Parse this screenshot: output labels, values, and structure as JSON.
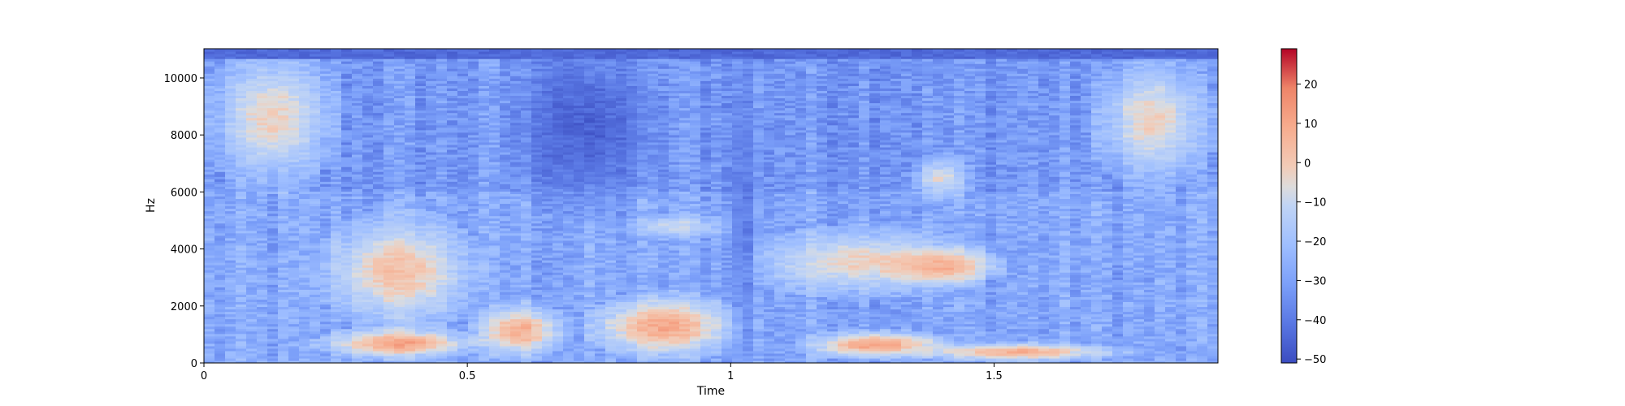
{
  "chart_data": {
    "type": "heatmap",
    "title": "",
    "xlabel": "Time",
    "ylabel": "Hz",
    "xlim": [
      0,
      1.925
    ],
    "ylim": [
      0,
      11025
    ],
    "x_ticks": [
      {
        "value": 0,
        "label": "0"
      },
      {
        "value": 0.5,
        "label": "0.5"
      },
      {
        "value": 1,
        "label": "1"
      },
      {
        "value": 1.5,
        "label": "1.5"
      }
    ],
    "y_ticks": [
      {
        "value": 0,
        "label": "0"
      },
      {
        "value": 2000,
        "label": "2000"
      },
      {
        "value": 4000,
        "label": "4000"
      },
      {
        "value": 6000,
        "label": "6000"
      },
      {
        "value": 8000,
        "label": "8000"
      },
      {
        "value": 10000,
        "label": "10000"
      }
    ],
    "colorbar": {
      "colormap": "coolwarm",
      "range": [
        -51,
        29
      ],
      "ticks": [
        {
          "value": 20,
          "label": "20"
        },
        {
          "value": 10,
          "label": "10"
        },
        {
          "value": 0,
          "label": "0"
        },
        {
          "value": -10,
          "label": "−10"
        },
        {
          "value": -20,
          "label": "−20"
        },
        {
          "value": -30,
          "label": "−30"
        },
        {
          "value": -40,
          "label": "−40"
        },
        {
          "value": -50,
          "label": "−50"
        }
      ]
    },
    "energy_regions": [
      {
        "t": [
          0.02,
          0.24
        ],
        "f": [
          6500,
          10800
        ],
        "db": -2
      },
      {
        "t": [
          0.24,
          0.5
        ],
        "f": [
          1500,
          5000
        ],
        "db": 3
      },
      {
        "t": [
          0.24,
          0.5
        ],
        "f": [
          200,
          1200
        ],
        "db": 12
      },
      {
        "t": [
          0.52,
          0.68
        ],
        "f": [
          300,
          2000
        ],
        "db": 8
      },
      {
        "t": [
          0.75,
          1.0
        ],
        "f": [
          300,
          2300
        ],
        "db": 10
      },
      {
        "t": [
          0.82,
          0.98
        ],
        "f": [
          4400,
          5200
        ],
        "db": -8
      },
      {
        "t": [
          1.05,
          1.45
        ],
        "f": [
          2500,
          4600
        ],
        "db": -2
      },
      {
        "t": [
          1.3,
          1.5
        ],
        "f": [
          2800,
          4000
        ],
        "db": 8
      },
      {
        "t": [
          1.15,
          1.4
        ],
        "f": [
          200,
          1100
        ],
        "db": 12
      },
      {
        "t": [
          1.38,
          1.72
        ],
        "f": [
          100,
          700
        ],
        "db": 8
      },
      {
        "t": [
          1.35,
          1.45
        ],
        "f": [
          5800,
          7200
        ],
        "db": -6
      },
      {
        "t": [
          1.7,
          1.9
        ],
        "f": [
          6500,
          10500
        ],
        "db": -2
      },
      {
        "t": [
          0.6,
          0.85
        ],
        "f": [
          5600,
          11025
        ],
        "db": -46
      },
      {
        "t": [
          1.0,
          1.05
        ],
        "f": [
          0,
          11025
        ],
        "db": -40
      }
    ]
  }
}
